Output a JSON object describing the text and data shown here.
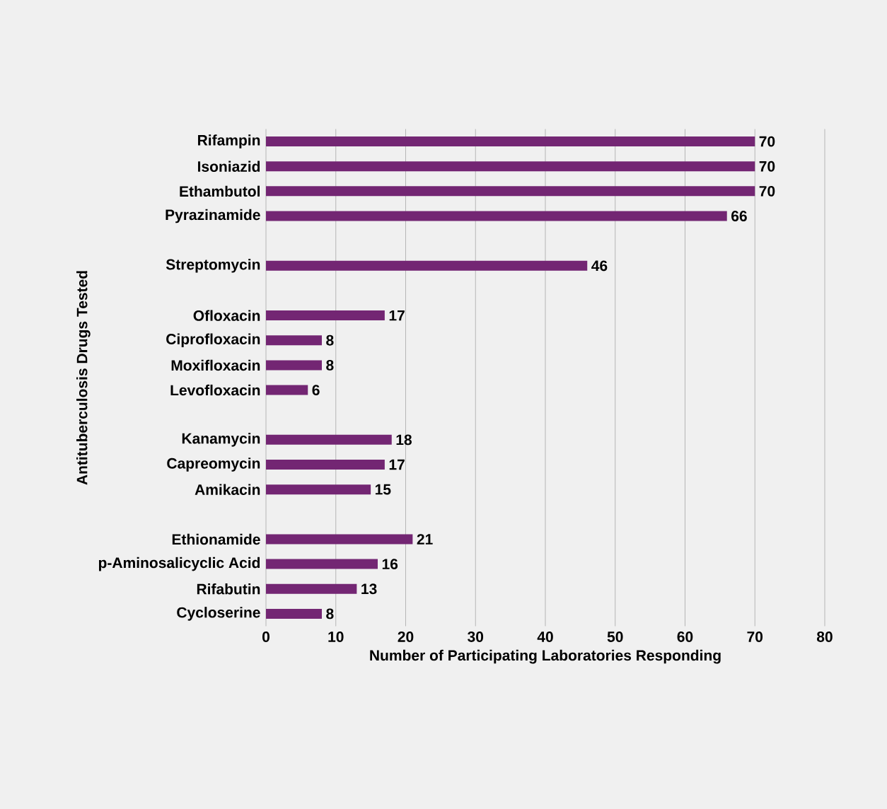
{
  "chart_data": {
    "type": "bar",
    "orientation": "horizontal",
    "categories": [
      "Rifampin",
      "Isoniazid",
      "Ethambutol",
      "Pyrazinamide",
      null,
      "Streptomycin",
      null,
      "Ofloxacin",
      "Ciprofloxacin",
      "Moxifloxacin",
      "Levofloxacin",
      null,
      "Kanamycin",
      "Capreomycin",
      "Amikacin",
      null,
      "Ethionamide",
      "p-Aminosalicyclic Acid",
      "Rifabutin",
      "Cycloserine"
    ],
    "values": [
      70,
      70,
      70,
      66,
      null,
      46,
      null,
      17,
      8,
      8,
      6,
      null,
      18,
      17,
      15,
      null,
      21,
      16,
      13,
      8
    ],
    "color": "#732673",
    "xlim": [
      0,
      80
    ],
    "xticks": [
      0,
      10,
      20,
      30,
      40,
      50,
      60,
      70,
      80
    ],
    "grid": "x",
    "data_labels": true,
    "xlabel": "Number of Participating Laboratories Responding",
    "ylabel": "Antituberculosis Drugs Tested"
  }
}
